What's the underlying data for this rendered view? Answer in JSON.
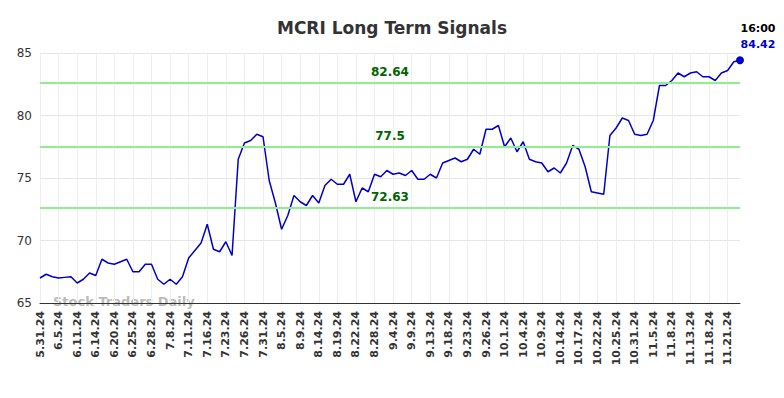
{
  "chart_data": {
    "type": "line",
    "title": "MCRI Long Term Signals",
    "categories": [
      "5.31.24",
      null,
      null,
      "6.5.24",
      null,
      null,
      "6.11.24",
      null,
      null,
      "6.14.24",
      null,
      null,
      "6.20.24",
      null,
      null,
      "6.25.24",
      null,
      null,
      "6.28.24",
      null,
      null,
      "7.8.24",
      null,
      null,
      "7.11.24",
      null,
      null,
      "7.16.24",
      null,
      null,
      "7.23.24",
      null,
      null,
      "7.26.24",
      null,
      null,
      "7.31.24",
      null,
      null,
      "8.5.24",
      null,
      null,
      "8.9.24",
      null,
      null,
      "8.14.24",
      null,
      null,
      "8.19.24",
      null,
      null,
      "8.22.24",
      null,
      null,
      "8.28.24",
      null,
      null,
      "9.4.24",
      null,
      null,
      "9.9.24",
      null,
      null,
      "9.13.24",
      null,
      null,
      "9.18.24",
      null,
      null,
      "9.23.24",
      null,
      null,
      "9.26.24",
      null,
      null,
      "10.1.24",
      null,
      null,
      "10.4.24",
      null,
      null,
      "10.9.24",
      null,
      null,
      "10.14.24",
      null,
      null,
      "10.17.24",
      null,
      null,
      "10.22.24",
      null,
      null,
      "10.25.24",
      null,
      null,
      "10.31.24",
      null,
      null,
      "11.5.24",
      null,
      null,
      "11.8.24",
      null,
      null,
      "11.13.24",
      null,
      null,
      "11.18.24",
      null,
      null,
      "11.21.24",
      null,
      null
    ],
    "values": [
      67.0,
      67.3,
      67.1,
      67.0,
      67.05,
      67.1,
      66.6,
      66.9,
      67.4,
      67.2,
      68.5,
      68.2,
      68.1,
      68.3,
      68.5,
      67.5,
      67.5,
      68.1,
      68.1,
      66.9,
      66.5,
      66.9,
      66.5,
      67.1,
      68.6,
      69.2,
      69.8,
      71.3,
      69.3,
      69.1,
      69.9,
      68.8,
      76.5,
      77.8,
      78.0,
      78.5,
      78.3,
      74.8,
      73.0,
      70.9,
      72.0,
      73.6,
      73.1,
      72.8,
      73.6,
      73.0,
      74.4,
      74.9,
      74.5,
      74.5,
      75.3,
      73.1,
      74.2,
      73.9,
      75.3,
      75.1,
      75.6,
      75.3,
      75.4,
      75.2,
      75.6,
      74.9,
      74.9,
      75.3,
      75.0,
      76.2,
      76.4,
      76.6,
      76.3,
      76.5,
      77.3,
      76.9,
      78.9,
      78.9,
      79.2,
      77.5,
      78.2,
      77.1,
      77.9,
      76.5,
      76.3,
      76.2,
      75.5,
      75.8,
      75.4,
      76.2,
      77.6,
      77.3,
      75.9,
      73.9,
      73.8,
      73.7,
      78.4,
      79.0,
      79.8,
      79.6,
      78.5,
      78.4,
      78.5,
      79.6,
      82.4,
      82.4,
      82.8,
      83.4,
      83.1,
      83.4,
      83.5,
      83.1,
      83.1,
      82.8,
      83.4,
      83.6,
      84.3,
      84.42
    ],
    "color": "#0000cc",
    "signal_lines": [
      82.64,
      77.5,
      72.63
    ],
    "signal_color": "#90ee90",
    "last_point": {
      "time": "16:00",
      "value": 84.42
    },
    "watermark": "Stock Traders Daily",
    "ylim": [
      65,
      85
    ],
    "yticks": [
      65,
      70,
      75,
      80,
      85
    ],
    "grid": true
  }
}
